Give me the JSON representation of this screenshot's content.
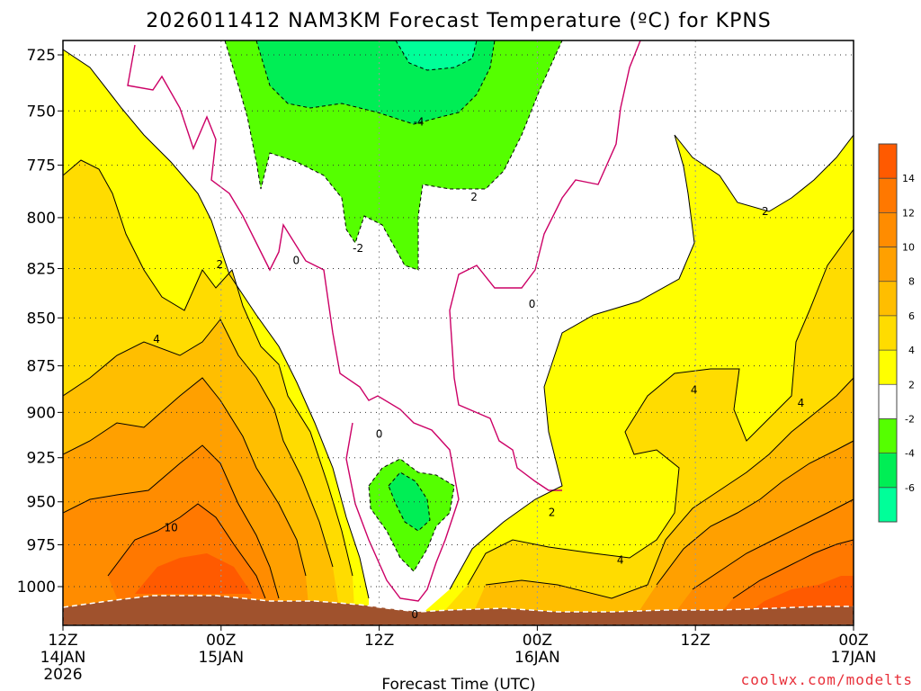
{
  "chart_data": {
    "type": "heatmap",
    "title": "2026011412 NAM3KM Forecast Temperature (ºC) for KPNS",
    "xlabel": "Forecast Time (UTC)",
    "ylabel": "",
    "credit": "coolwx.com/modelts",
    "y_ticks": [
      "725",
      "750",
      "775",
      "800",
      "825",
      "850",
      "875",
      "900",
      "925",
      "950",
      "975",
      "1000"
    ],
    "y_values": [
      725,
      750,
      775,
      800,
      825,
      850,
      875,
      900,
      925,
      950,
      975,
      1000
    ],
    "y_range_hpa": [
      712,
      1020
    ],
    "x_ticks": [
      {
        "hour": 0,
        "l1": "12Z",
        "l2": "14JAN",
        "l3": "2026"
      },
      {
        "hour": 12,
        "l1": "00Z",
        "l2": "15JAN",
        "l3": ""
      },
      {
        "hour": 24,
        "l1": "12Z",
        "l2": "",
        "l3": ""
      },
      {
        "hour": 36,
        "l1": "00Z",
        "l2": "16JAN",
        "l3": ""
      },
      {
        "hour": 48,
        "l1": "12Z",
        "l2": "",
        "l3": ""
      },
      {
        "hour": 60,
        "l1": "00Z",
        "l2": "17JAN",
        "l3": ""
      }
    ],
    "x_range_hours": [
      0,
      60
    ],
    "grid": true,
    "colorbar": {
      "ticks": [
        "14",
        "12",
        "10",
        "8",
        "6",
        "4",
        "2",
        "-2",
        "-4",
        "-6"
      ],
      "bins": [
        {
          "range": [
            14,
            16
          ],
          "color": "#ff5a00"
        },
        {
          "range": [
            12,
            14
          ],
          "color": "#ff7800"
        },
        {
          "range": [
            10,
            12
          ],
          "color": "#ff8c00"
        },
        {
          "range": [
            8,
            10
          ],
          "color": "#ffa000"
        },
        {
          "range": [
            6,
            8
          ],
          "color": "#ffbe00"
        },
        {
          "range": [
            4,
            6
          ],
          "color": "#ffdc00"
        },
        {
          "range": [
            2,
            4
          ],
          "color": "#ffff00"
        },
        {
          "range": [
            -2,
            2
          ],
          "color": "#ffffff"
        },
        {
          "range": [
            -4,
            -2
          ],
          "color": "#55ff00"
        },
        {
          "range": [
            -6,
            -4
          ],
          "color": "#00ee55"
        },
        {
          "range": [
            -8,
            -6
          ],
          "color": "#00ff99"
        }
      ]
    },
    "contour_labels": [
      {
        "text": "-4",
        "hour": 27.0,
        "p": 755
      },
      {
        "text": "2",
        "hour": 31.2,
        "p": 790
      },
      {
        "text": "-2",
        "hour": 22.4,
        "p": 815
      },
      {
        "text": "0",
        "hour": 17.7,
        "p": 821
      },
      {
        "text": "2",
        "hour": 11.9,
        "p": 823
      },
      {
        "text": "0",
        "hour": 35.6,
        "p": 843
      },
      {
        "text": "4",
        "hour": 7.1,
        "p": 861
      },
      {
        "text": "2",
        "hour": 53.3,
        "p": 797
      },
      {
        "text": "4",
        "hour": 47.9,
        "p": 888
      },
      {
        "text": "4",
        "hour": 56.0,
        "p": 895
      },
      {
        "text": "0",
        "hour": 24.0,
        "p": 912
      },
      {
        "text": "2",
        "hour": 37.1,
        "p": 956
      },
      {
        "text": "10",
        "hour": 8.2,
        "p": 965
      },
      {
        "text": "4",
        "hour": 42.3,
        "p": 984
      },
      {
        "text": "0",
        "hour": 26.7,
        "p": 1017
      }
    ]
  }
}
